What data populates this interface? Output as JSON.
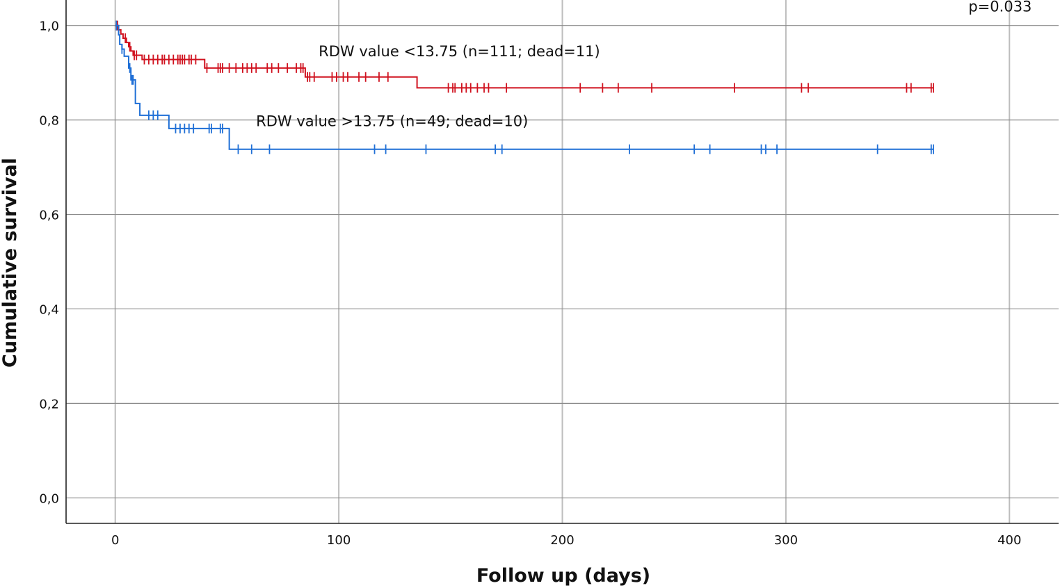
{
  "chart_data": {
    "type": "line",
    "title": "",
    "xlabel": "Follow up (days)",
    "ylabel": "Cumulative survival",
    "xlim": [
      -22,
      422
    ],
    "ylim": [
      -0.054,
      1.054
    ],
    "x_ticks": [
      0,
      100,
      200,
      300,
      400
    ],
    "x_tick_labels": [
      "0",
      "100",
      "200",
      "300",
      "400"
    ],
    "y_ticks": [
      0.0,
      0.2,
      0.4,
      0.6,
      0.8,
      1.0
    ],
    "y_tick_labels": [
      "0,0",
      "0,2",
      "0,4",
      "0,6",
      "0,8",
      "1,0"
    ],
    "grid": true,
    "annotations": [
      {
        "text": "p=0.033",
        "x": 410,
        "y": 1.03,
        "anchor": "end"
      }
    ],
    "series": [
      {
        "name": "RDW value <13.75 (n=111; dead=11)",
        "color": "#d0121f",
        "label_pos": {
          "x": 91,
          "y": 0.935
        },
        "steps": [
          [
            0,
            1.0
          ],
          [
            1.5,
            0.991
          ],
          [
            2.5,
            0.982
          ],
          [
            3.5,
            0.973
          ],
          [
            5,
            0.964
          ],
          [
            6,
            0.955
          ],
          [
            7,
            0.946
          ],
          [
            8,
            0.937
          ],
          [
            12,
            0.928
          ],
          [
            40,
            0.91
          ],
          [
            85,
            0.891
          ],
          [
            135,
            0.868
          ],
          [
            366,
            0.868
          ]
        ],
        "censors": [
          0.5,
          1,
          4.5,
          6.5,
          8.5,
          9.5,
          13,
          15,
          17,
          19,
          21,
          22,
          24,
          26,
          28,
          29,
          30,
          31,
          33,
          34,
          36,
          41,
          46,
          47,
          48,
          51,
          54,
          57,
          59,
          61,
          63,
          68,
          70,
          73,
          77,
          81,
          83,
          84,
          86,
          87,
          89,
          97,
          99,
          102,
          104,
          109,
          112,
          118,
          122,
          149,
          151,
          152,
          155,
          157,
          159,
          162,
          165,
          167,
          175,
          208,
          218,
          225,
          240,
          277,
          307,
          310,
          354,
          356,
          365,
          366
        ]
      },
      {
        "name": "RDW value >13.75 (n=49; dead=10)",
        "color": "#1f6fd6",
        "label_pos": {
          "x": 63,
          "y": 0.787
        },
        "steps": [
          [
            0,
            1.0
          ],
          [
            1.5,
            0.98
          ],
          [
            2,
            0.96
          ],
          [
            3,
            0.95
          ],
          [
            4,
            0.935
          ],
          [
            6,
            0.91
          ],
          [
            7,
            0.885
          ],
          [
            9,
            0.835
          ],
          [
            11,
            0.81
          ],
          [
            24,
            0.782
          ],
          [
            51,
            0.738
          ],
          [
            366,
            0.738
          ]
        ],
        "censors": [
          0.5,
          3,
          6.5,
          7.5,
          8,
          15,
          17,
          19,
          27,
          29,
          31,
          33,
          35,
          42,
          43,
          47,
          48,
          55,
          61,
          69,
          116,
          121,
          139,
          170,
          173,
          230,
          259,
          266,
          289,
          291,
          296,
          341,
          365,
          366
        ]
      }
    ]
  }
}
